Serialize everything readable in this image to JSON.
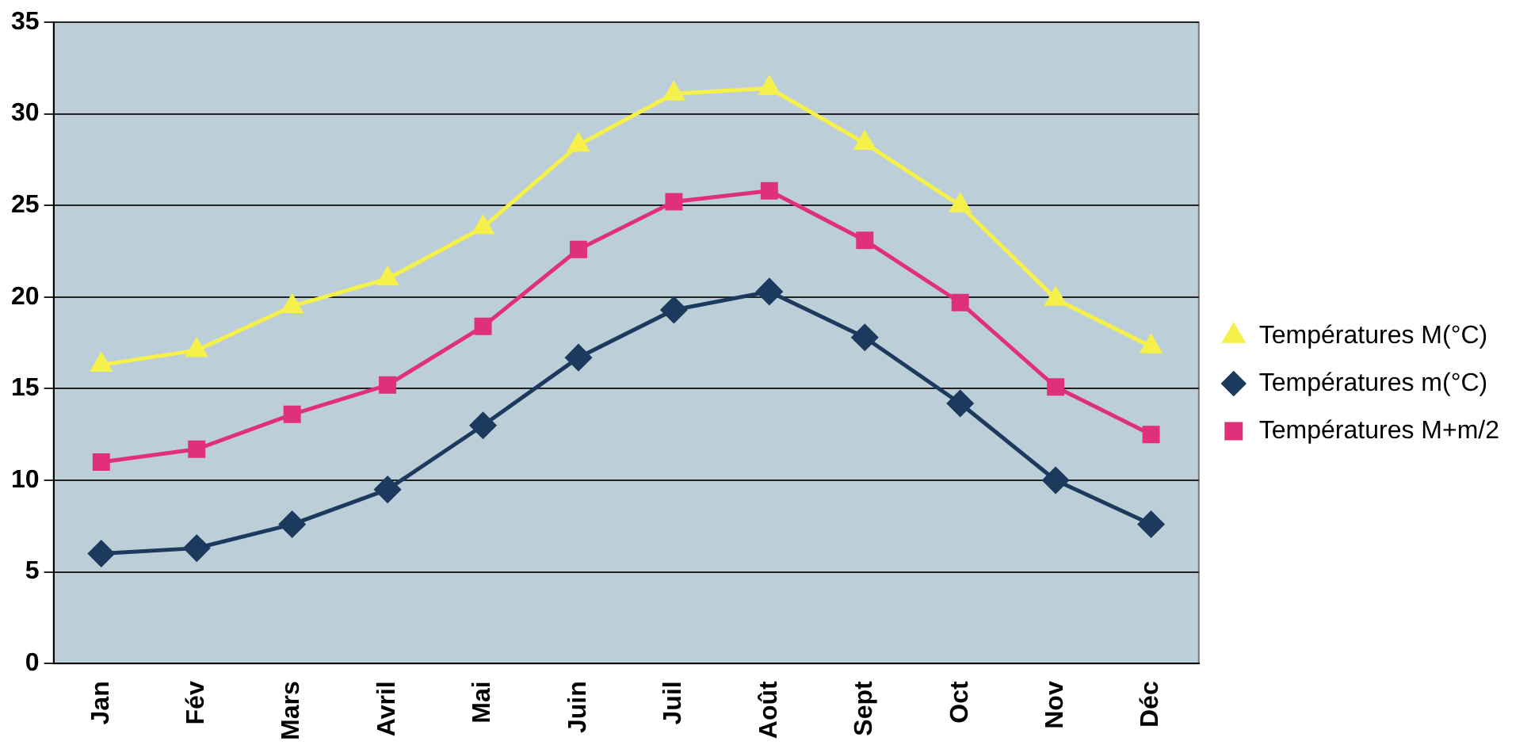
{
  "chart_data": {
    "type": "line",
    "categories": [
      "Jan",
      "Fév",
      "Mars",
      "Avril",
      "Mai",
      "Juin",
      "Juil",
      "Août",
      "Sept",
      "Oct",
      "Nov",
      "Déc"
    ],
    "series": [
      {
        "name": "Températures M(°C)",
        "color": "#f5f04a",
        "marker": "triangle",
        "values": [
          16.3,
          17.1,
          19.5,
          21,
          23.8,
          28.3,
          31.1,
          31.4,
          28.4,
          25,
          19.9,
          17.3
        ]
      },
      {
        "name": "Températures m(°C)",
        "color": "#1c3a5e",
        "marker": "diamond",
        "values": [
          6,
          6.3,
          7.6,
          9.5,
          13,
          16.7,
          19.3,
          20.3,
          17.8,
          14.2,
          10,
          7.6
        ]
      },
      {
        "name": "Températures M+m/2",
        "color": "#e0307a",
        "marker": "square",
        "values": [
          11,
          11.7,
          13.6,
          15.2,
          18.4,
          22.6,
          25.2,
          25.8,
          23.1,
          19.7,
          15.1,
          12.5
        ]
      }
    ],
    "ylim": [
      0,
      35
    ],
    "yticks": [
      0,
      5,
      10,
      15,
      20,
      25,
      30,
      35
    ],
    "grid": "y",
    "legend": "right"
  }
}
